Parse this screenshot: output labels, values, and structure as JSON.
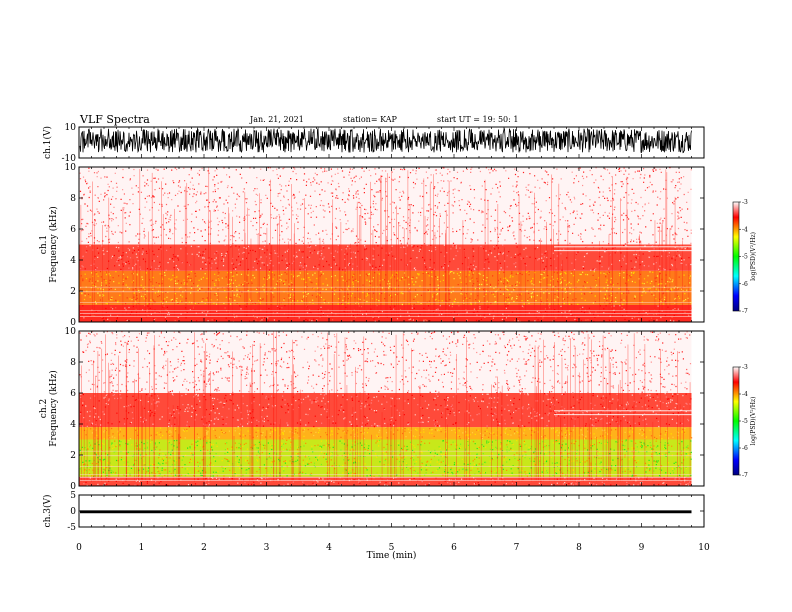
{
  "header": {
    "title": "VLF Spectra",
    "date": "Jan. 21, 2021",
    "station": "station= KAP",
    "start": "start UT =   19: 50: 1"
  },
  "colors": {
    "background": "#ffffff",
    "ink": "#000000",
    "spectrogram_low": "#ff0000",
    "spectrogram_mid": "#ffd200",
    "spectrogram_high": "#26e61a"
  },
  "chart_data": [
    {
      "type": "line",
      "name": "ch1-waveform",
      "ylabel": "ch.1(V)",
      "ylim": [
        -10,
        10
      ],
      "y_ticks": [
        "10",
        "-10"
      ],
      "x_range": [
        0,
        10
      ],
      "data_extent_min": 9.8,
      "amplitude_band": [
        -6.5,
        9
      ]
    },
    {
      "type": "heatmap",
      "name": "ch1-spectrogram",
      "ylabel": "ch.1\nFrequency (kHz)",
      "ylim": [
        0,
        10
      ],
      "y_ticks": [
        "0",
        "2",
        "4",
        "6",
        "8",
        "10"
      ],
      "x_range": [
        0,
        10
      ],
      "data_extent_min": 9.8,
      "colorbar": {
        "label": "log(PSD)(V²/Hz)",
        "range": [
          -7,
          -3
        ],
        "ticks": [
          "-3",
          "-4",
          "-5",
          "-6",
          "-7"
        ],
        "colormap": [
          "#000080",
          "#0000ff",
          "#00ffff",
          "#00ff00",
          "#ffff00",
          "#ff0000",
          "#ffffff"
        ]
      },
      "bands_khz": [
        {
          "from": 0,
          "to": 1.1,
          "level": "strong-red"
        },
        {
          "from": 1.1,
          "to": 3.3,
          "level": "yellow-red"
        },
        {
          "from": 3.3,
          "to": 5.0,
          "level": "red"
        },
        {
          "from": 5.0,
          "to": 10,
          "level": "sparse-red"
        }
      ]
    },
    {
      "type": "heatmap",
      "name": "ch2-spectrogram",
      "ylabel": "ch.2\nFrequency (kHz)",
      "ylim": [
        0,
        10
      ],
      "y_ticks": [
        "0",
        "2",
        "4",
        "6",
        "8",
        "10"
      ],
      "x_range": [
        0,
        10
      ],
      "data_extent_min": 9.8,
      "colorbar": {
        "label": "log(PSD)(V²/Hz)",
        "range": [
          -7,
          -3
        ],
        "ticks": [
          "-3",
          "-4",
          "-5",
          "-6",
          "-7"
        ],
        "colormap": [
          "#000080",
          "#0000ff",
          "#00ffff",
          "#00ff00",
          "#ffff00",
          "#ff0000",
          "#ffffff"
        ]
      },
      "bands_khz": [
        {
          "from": 0,
          "to": 0.6,
          "level": "red"
        },
        {
          "from": 0.6,
          "to": 3.0,
          "level": "green-yellow"
        },
        {
          "from": 3.0,
          "to": 3.8,
          "level": "yellow"
        },
        {
          "from": 3.8,
          "to": 6.0,
          "level": "red"
        },
        {
          "from": 6.0,
          "to": 10,
          "level": "sparse-red"
        }
      ]
    },
    {
      "type": "line",
      "name": "ch3-waveform",
      "ylabel": "ch.3(V)",
      "ylim": [
        -5,
        5
      ],
      "y_ticks": [
        "5",
        "0",
        "-5"
      ],
      "x_range": [
        0,
        10
      ],
      "data_extent_min": 9.8,
      "amplitude_band": [
        -0.7,
        0.2
      ],
      "xlabel": "Time (min)",
      "x_ticks": [
        "0",
        "1",
        "2",
        "3",
        "4",
        "5",
        "6",
        "7",
        "8",
        "9",
        "10"
      ]
    }
  ]
}
